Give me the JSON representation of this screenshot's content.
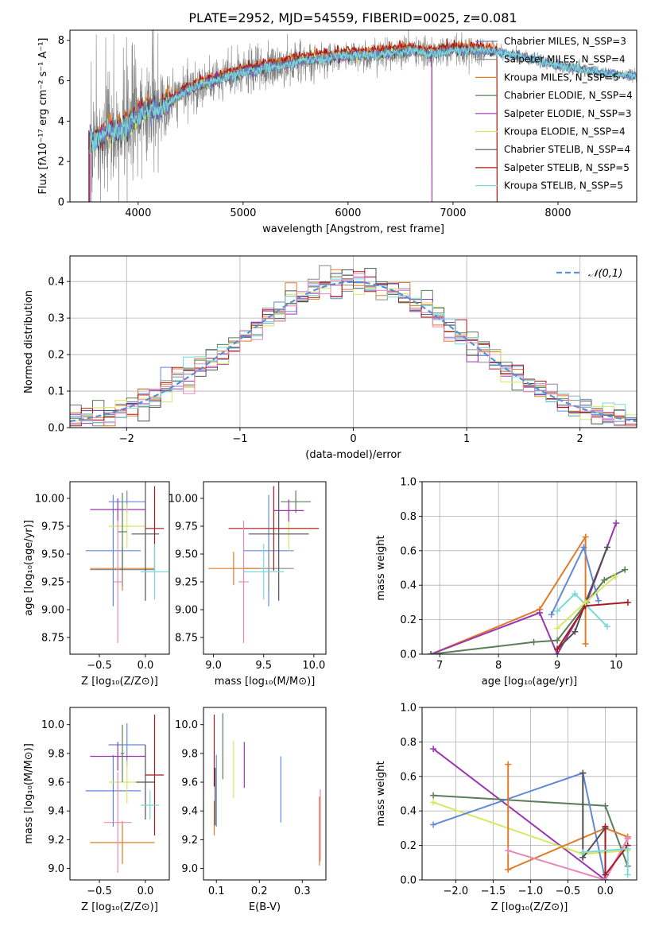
{
  "figure": {
    "title": "PLATE=2952, MJD=54559, FIBERID=0025, z=0.081"
  },
  "colors": {
    "chabrier_miles": "#6488d8",
    "salpeter_miles": "#8a8a8a",
    "kroupa_miles": "#e07b28",
    "chabrier_elodie": "#5a7d5a",
    "salpeter_elodie": "#9a35b0",
    "kroupa_elodie": "#d7e860",
    "chabrier_stelib": "#505050",
    "salpeter_stelib": "#a8181c",
    "kroupa_stelib": "#7ad8d8",
    "pink": "#e888b8",
    "gaussian": "#5b8fd6",
    "grid": "#b0b0b0",
    "data_gray": "#808080"
  },
  "chart_data": [
    {
      "id": "spectrum",
      "type": "line",
      "xlabel": "wavelength [Angstrom, rest frame]",
      "ylabel": "Flux [fλ10⁻¹⁷ erg cm⁻² s⁻¹ A⁻¹]",
      "xlim": [
        3350,
        8750
      ],
      "ylim": [
        0,
        8.5
      ],
      "xticks": [
        4000,
        5000,
        6000,
        7000,
        8000
      ],
      "yticks": [
        0,
        2,
        4,
        6,
        8
      ],
      "grid": false,
      "legend_position": "top-right",
      "legend": [
        "Chabrier MILES, N_SSP=3",
        "Salpeter MILES, N_SSP=4",
        "Kroupa MILES, N_SSP=5",
        "Chabrier ELODIE, N_SSP=4",
        "Salpeter ELODIE, N_SSP=3",
        "Kroupa ELODIE, N_SSP=4",
        "Chabrier STELIB, N_SSP=4",
        "Salpeter STELIB, N_SSP=5",
        "Kroupa STELIB, N_SSP=5"
      ],
      "continuum": {
        "x": [
          3500,
          3600,
          3700,
          3800,
          3900,
          4000,
          4100,
          4200,
          4400,
          4600,
          4800,
          5000,
          5200,
          5400,
          5600,
          5800,
          6000,
          6200,
          6400,
          6600,
          6800,
          7000,
          7200,
          7400,
          7600,
          7800,
          8000,
          8200,
          8400,
          8750
        ],
        "y": [
          3.0,
          3.0,
          3.5,
          3.4,
          3.8,
          4.3,
          4.6,
          4.5,
          5.3,
          5.8,
          6.1,
          6.4,
          6.6,
          6.8,
          7.0,
          7.1,
          7.25,
          7.25,
          7.35,
          7.5,
          7.3,
          7.5,
          7.5,
          7.4,
          7.25,
          7.05,
          6.75,
          6.6,
          6.4,
          6.2
        ]
      }
    },
    {
      "id": "residuals",
      "type": "histogram",
      "xlabel": "(data-model)/error",
      "ylabel": "Normed distribution",
      "xlim": [
        -2.5,
        2.5
      ],
      "ylim": [
        0,
        0.47
      ],
      "xticks": [
        -2,
        -1,
        0,
        1,
        2
      ],
      "yticks": [
        0.0,
        0.1,
        0.2,
        0.3,
        0.4
      ],
      "grid": true,
      "legend": [
        "𝒩(0,1)"
      ],
      "legend_position": "top-right",
      "bin_width": 0.1
    },
    {
      "id": "age_vs_Z",
      "type": "errorbar",
      "xlabel": "Z [log₁₀(Z/Z⊙)]",
      "ylabel": "age  [log₁₀(age/yr)]",
      "xlim": [
        -0.82,
        0.26
      ],
      "ylim": [
        8.6,
        10.15
      ],
      "xticks": [
        -0.5,
        0.0
      ],
      "yticks": [
        8.75,
        9.0,
        9.25,
        9.5,
        9.75,
        10.0
      ],
      "grid": false,
      "points": [
        {
          "x": -0.35,
          "y": 9.53,
          "xe": 0.3,
          "ye": 0.5,
          "c": "chabrier_miles"
        },
        {
          "x": -0.2,
          "y": 9.97,
          "xe": 0.2,
          "ye": 0.1,
          "c": "chabrier_miles"
        },
        {
          "x": -0.25,
          "y": 9.37,
          "xe": 0.35,
          "ye": 0.2,
          "c": "kroupa_miles"
        },
        {
          "x": -0.25,
          "y": 9.36,
          "xe": 0.35,
          "ye": 0.15,
          "c": "salpeter_miles"
        },
        {
          "x": -0.3,
          "y": 9.9,
          "xe": 0.3,
          "ye": 0.1,
          "c": "salpeter_elodie"
        },
        {
          "x": -0.2,
          "y": 9.75,
          "xe": 0.2,
          "ye": 0.2,
          "c": "kroupa_elodie"
        },
        {
          "x": -0.25,
          "y": 9.7,
          "xe": 0.05,
          "ye": 0.35,
          "c": "chabrier_elodie"
        },
        {
          "x": 0.0,
          "y": 9.68,
          "xe": 0.15,
          "ye": 0.6,
          "c": "chabrier_stelib"
        },
        {
          "x": 0.1,
          "y": 9.73,
          "xe": 0.1,
          "ye": 0.38,
          "c": "salpeter_stelib"
        },
        {
          "x": 0.1,
          "y": 9.34,
          "xe": 0.15,
          "ye": 0.25,
          "c": "kroupa_stelib"
        },
        {
          "x": -0.3,
          "y": 9.25,
          "xe": 0.05,
          "ye": 0.55,
          "c": "pink"
        }
      ]
    },
    {
      "id": "age_vs_mass",
      "type": "errorbar",
      "xlabel": "mass [log₁₀(M/M⊙)]",
      "ylabel": "",
      "xlim": [
        8.9,
        10.12
      ],
      "ylim": [
        8.6,
        10.15
      ],
      "xticks": [
        9.0,
        9.5,
        10.0
      ],
      "yticks": [
        8.75,
        9.0,
        9.25,
        9.5,
        9.75,
        10.0
      ],
      "grid": false,
      "points": [
        {
          "x": 9.55,
          "y": 9.53,
          "xe": 0.25,
          "ye": 0.5,
          "c": "chabrier_miles"
        },
        {
          "x": 9.55,
          "y": 9.37,
          "xe": 0.25,
          "ye": 0.2,
          "c": "salpeter_miles"
        },
        {
          "x": 9.2,
          "y": 9.37,
          "xe": 0.25,
          "ye": 0.15,
          "c": "kroupa_miles"
        },
        {
          "x": 9.75,
          "y": 9.73,
          "xe": 0.3,
          "ye": 0.2,
          "c": "kroupa_elodie"
        },
        {
          "x": 9.82,
          "y": 9.97,
          "xe": 0.15,
          "ye": 0.1,
          "c": "chabrier_elodie"
        },
        {
          "x": 9.75,
          "y": 9.89,
          "xe": 0.15,
          "ye": 0.1,
          "c": "salpeter_elodie"
        },
        {
          "x": 9.65,
          "y": 9.68,
          "xe": 0.3,
          "ye": 0.6,
          "c": "chabrier_stelib"
        },
        {
          "x": 9.6,
          "y": 9.73,
          "xe": 0.45,
          "ye": 0.38,
          "c": "salpeter_stelib"
        },
        {
          "x": 9.5,
          "y": 9.34,
          "xe": 0.2,
          "ye": 0.25,
          "c": "kroupa_stelib"
        },
        {
          "x": 9.3,
          "y": 9.25,
          "xe": 0.05,
          "ye": 0.55,
          "c": "pink"
        }
      ]
    },
    {
      "id": "weight_vs_age",
      "type": "line",
      "xlabel": "age  [log₁₀(age/yr)]",
      "ylabel": "mass weight",
      "xlim": [
        6.7,
        10.35
      ],
      "ylim": [
        0,
        1
      ],
      "xticks": [
        7,
        8,
        9,
        10
      ],
      "yticks": [
        0.0,
        0.2,
        0.4,
        0.6,
        0.8,
        1.0
      ],
      "grid": true,
      "series": [
        {
          "c": "kroupa_miles",
          "x": [
            6.85,
            8.7,
            9.48,
            9.48
          ],
          "y": [
            0.0,
            0.26,
            0.68,
            0.06
          ]
        },
        {
          "c": "salpeter_elodie",
          "x": [
            6.85,
            8.7,
            9.0,
            9.5,
            10.0
          ],
          "y": [
            0.0,
            0.24,
            0.0,
            0.3,
            0.76
          ]
        },
        {
          "c": "chabrier_elodie",
          "x": [
            6.85,
            8.6,
            9.0,
            9.5,
            9.8,
            10.15
          ],
          "y": [
            0.0,
            0.07,
            0.08,
            0.3,
            0.43,
            0.49
          ]
        },
        {
          "c": "chabrier_miles",
          "x": [
            8.9,
            9.45,
            9.7
          ],
          "y": [
            0.23,
            0.62,
            0.31
          ]
        },
        {
          "c": "kroupa_stelib",
          "x": [
            9.0,
            9.3,
            9.85
          ],
          "y": [
            0.25,
            0.35,
            0.16
          ]
        },
        {
          "c": "chabrier_stelib",
          "x": [
            9.0,
            9.3,
            9.48,
            9.85
          ],
          "y": [
            0.03,
            0.13,
            0.3,
            0.62
          ]
        },
        {
          "c": "salpeter_stelib",
          "x": [
            9.0,
            9.48,
            10.2
          ],
          "y": [
            0.03,
            0.28,
            0.3
          ]
        },
        {
          "c": "kroupa_elodie",
          "x": [
            9.0,
            9.48,
            9.98
          ],
          "y": [
            0.15,
            0.3,
            0.45
          ]
        }
      ]
    },
    {
      "id": "mass_vs_Z",
      "type": "errorbar",
      "xlabel": "Z [log₁₀(Z/Z⊙)]",
      "ylabel": "mass [log₁₀(M/M⊙)]",
      "xlim": [
        -0.82,
        0.26
      ],
      "ylim": [
        8.92,
        10.12
      ],
      "xticks": [
        -0.5,
        0.0
      ],
      "yticks": [
        9.0,
        9.2,
        9.4,
        9.6,
        9.8,
        10.0
      ],
      "grid": false,
      "points": [
        {
          "x": -0.35,
          "y": 9.54,
          "xe": 0.3,
          "ye": 0.25,
          "c": "chabrier_miles"
        },
        {
          "x": -0.2,
          "y": 9.86,
          "xe": 0.2,
          "ye": 0.15,
          "c": "chabrier_miles"
        },
        {
          "x": -0.25,
          "y": 9.18,
          "xe": 0.35,
          "ye": 0.15,
          "c": "kroupa_miles"
        },
        {
          "x": -0.3,
          "y": 9.78,
          "xe": 0.3,
          "ye": 0.1,
          "c": "salpeter_elodie"
        },
        {
          "x": -0.2,
          "y": 9.6,
          "xe": 0.2,
          "ye": 0.15,
          "c": "kroupa_elodie"
        },
        {
          "x": -0.25,
          "y": 9.8,
          "xe": 0.02,
          "ye": 0.2,
          "c": "chabrier_elodie"
        },
        {
          "x": 0.0,
          "y": 9.6,
          "xe": 0.1,
          "ye": 0.26,
          "c": "chabrier_stelib"
        },
        {
          "x": 0.1,
          "y": 9.65,
          "xe": 0.1,
          "ye": 0.42,
          "c": "salpeter_stelib"
        },
        {
          "x": 0.05,
          "y": 9.44,
          "xe": 0.1,
          "ye": 0.1,
          "c": "kroupa_stelib"
        },
        {
          "x": -0.3,
          "y": 9.32,
          "xe": 0.15,
          "ye": 0.35,
          "c": "pink"
        }
      ]
    },
    {
      "id": "mass_vs_ebv",
      "type": "errorbar",
      "xlabel": "E(B-V)",
      "ylabel": "",
      "xlim": [
        0.07,
        0.355
      ],
      "ylim": [
        8.92,
        10.12
      ],
      "xticks": [
        0.1,
        0.2,
        0.3
      ],
      "yticks": [
        9.0,
        9.2,
        9.4,
        9.6,
        9.8,
        10.0
      ],
      "grid": false,
      "points": [
        {
          "x": 0.1,
          "y": 9.54,
          "xe": 0,
          "ye": 0.25,
          "c": "chabrier_miles"
        },
        {
          "x": 0.095,
          "y": 9.35,
          "xe": 0,
          "ye": 0.12,
          "c": "kroupa_miles"
        },
        {
          "x": 0.095,
          "y": 9.82,
          "xe": 0,
          "ye": 0.25,
          "c": "salpeter_stelib"
        },
        {
          "x": 0.097,
          "y": 9.5,
          "xe": 0,
          "ye": 0.2,
          "c": "chabrier_stelib"
        },
        {
          "x": 0.115,
          "y": 9.85,
          "xe": 0,
          "ye": 0.23,
          "c": "chabrier_elodie"
        },
        {
          "x": 0.14,
          "y": 9.69,
          "xe": 0,
          "ye": 0.2,
          "c": "kroupa_elodie"
        },
        {
          "x": 0.165,
          "y": 9.72,
          "xe": 0,
          "ye": 0.16,
          "c": "salpeter_elodie"
        },
        {
          "x": 0.25,
          "y": 9.55,
          "xe": 0,
          "ye": 0.23,
          "c": "chabrier_miles"
        },
        {
          "x": 0.34,
          "y": 9.26,
          "xe": 0,
          "ye": 0.24,
          "c": "kroupa_miles"
        },
        {
          "x": 0.342,
          "y": 9.3,
          "xe": 0,
          "ye": 0.25,
          "c": "pink"
        }
      ]
    },
    {
      "id": "weight_vs_Z",
      "type": "line",
      "xlabel": "Z [log₁₀(Z/Z⊙)]",
      "ylabel": "mass weight",
      "xlim": [
        -2.45,
        0.42
      ],
      "ylim": [
        0,
        1
      ],
      "xticks": [
        -2.0,
        -1.5,
        -1.0,
        -0.5,
        0.0
      ],
      "yticks": [
        0.0,
        0.2,
        0.4,
        0.6,
        0.8,
        1.0
      ],
      "grid": true,
      "series": [
        {
          "c": "salpeter_elodie",
          "x": [
            -2.3,
            0.0,
            0.3
          ],
          "y": [
            0.76,
            0.0,
            0.24
          ]
        },
        {
          "c": "chabrier_elodie",
          "x": [
            -2.3,
            0.0,
            0.3
          ],
          "y": [
            0.49,
            0.43,
            0.08
          ]
        },
        {
          "c": "kroupa_elodie",
          "x": [
            -2.3,
            -0.3,
            0.3
          ],
          "y": [
            0.45,
            0.15,
            0.17
          ]
        },
        {
          "c": "chabrier_miles",
          "x": [
            -2.3,
            -0.3,
            0.0
          ],
          "y": [
            0.32,
            0.62,
            0.0
          ]
        },
        {
          "c": "kroupa_miles",
          "x": [
            -1.3,
            -1.3,
            0.0,
            0.3
          ],
          "y": [
            0.67,
            0.06,
            0.3,
            0.25
          ]
        },
        {
          "c": "pink",
          "x": [
            -1.3,
            0.0,
            0.3
          ],
          "y": [
            0.17,
            0.0,
            0.24
          ]
        },
        {
          "c": "chabrier_stelib",
          "x": [
            -0.3,
            -0.3,
            0.0
          ],
          "y": [
            0.62,
            0.13,
            0.3
          ]
        },
        {
          "c": "salpeter_stelib",
          "x": [
            0.0,
            0.0,
            0.3
          ],
          "y": [
            0.31,
            0.03,
            0.2
          ]
        },
        {
          "c": "kroupa_stelib",
          "x": [
            -0.3,
            0.3,
            0.3
          ],
          "y": [
            0.16,
            0.18,
            0.03
          ]
        }
      ]
    }
  ]
}
